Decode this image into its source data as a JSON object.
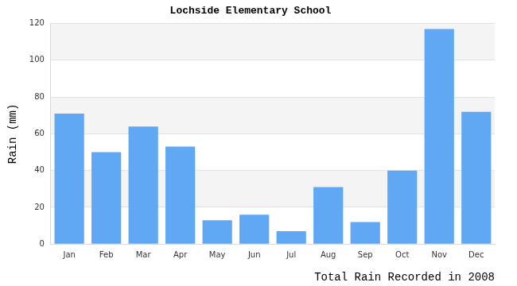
{
  "chart_data": {
    "type": "bar",
    "title": "Lochside Elementary School",
    "y_label": "Rain (mm)",
    "x_label": "Total Rain Recorded in 2008",
    "categories": [
      "Jan",
      "Feb",
      "Mar",
      "Apr",
      "May",
      "Jun",
      "Jul",
      "Aug",
      "Sep",
      "Oct",
      "Nov",
      "Dec"
    ],
    "values": [
      71,
      50,
      64,
      53,
      13,
      16,
      7,
      31,
      12,
      40,
      117,
      72
    ],
    "color": "#60a8f4",
    "ylim": [
      0,
      120
    ],
    "yticks": [
      0,
      20,
      40,
      60,
      80,
      100,
      120
    ],
    "grid": true
  }
}
